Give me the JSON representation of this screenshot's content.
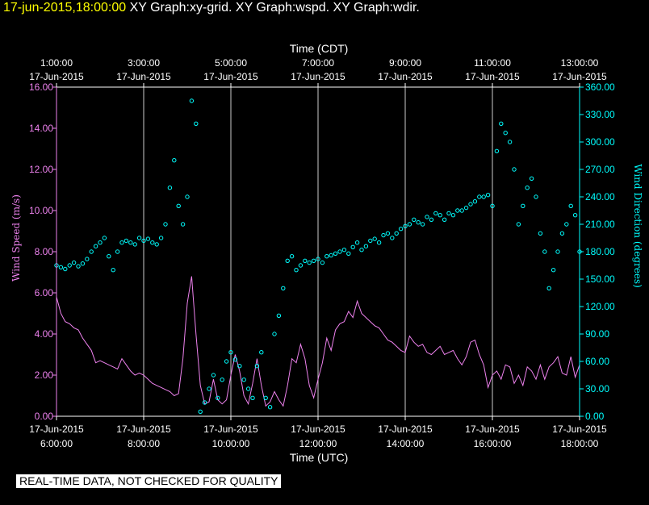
{
  "header": {
    "timestamp": "17-jun-2015,18:00:00",
    "graphs": "XY Graph:xy-grid.  XY Graph:wspd.  XY Graph:wdir."
  },
  "footer_banner": "REAL-TIME DATA, NOT CHECKED FOR QUALITY",
  "colors": {
    "background": "#000000",
    "axis": "#ffffff",
    "grid": "#cccccc",
    "wind_speed": "#ee82ee",
    "wind_direction": "#00ffff",
    "header_timestamp": "#ffff00"
  },
  "chart_data": {
    "type": "line",
    "grid": "vertical",
    "xlabel_bottom": "Time (UTC)",
    "xlabel_top": "Time (CDT)",
    "ylabel_left": "Wind Speed (m/s)",
    "ylabel_right": "Wind Direction (degrees)",
    "ylim_left": [
      0,
      16
    ],
    "ylim_right": [
      0,
      360
    ],
    "xlim_utc_hours": [
      6,
      18
    ],
    "yticks_left": [
      "0.00",
      "2.00",
      "4.00",
      "6.00",
      "8.00",
      "10.00",
      "12.00",
      "14.00",
      "16.00"
    ],
    "yticks_right": [
      "0.00",
      "30.00",
      "60.00",
      "90.00",
      "120.00",
      "150.00",
      "180.00",
      "210.00",
      "240.00",
      "270.00",
      "300.00",
      "330.00",
      "360.00"
    ],
    "xticks_bottom": [
      {
        "hour": 6,
        "date": "17-Jun-2015",
        "time": "6:00:00"
      },
      {
        "hour": 8,
        "date": "17-Jun-2015",
        "time": "8:00:00"
      },
      {
        "hour": 10,
        "date": "17-Jun-2015",
        "time": "10:00:00"
      },
      {
        "hour": 12,
        "date": "17-Jun-2015",
        "time": "12:00:00"
      },
      {
        "hour": 14,
        "date": "17-Jun-2015",
        "time": "14:00:00"
      },
      {
        "hour": 16,
        "date": "17-Jun-2015",
        "time": "16:00:00"
      },
      {
        "hour": 18,
        "date": "17-Jun-2015",
        "time": "18:00:00"
      }
    ],
    "xticks_top": [
      {
        "hour": 6,
        "time": "1:00:00",
        "date": "17-Jun-2015"
      },
      {
        "hour": 8,
        "time": "3:00:00",
        "date": "17-Jun-2015"
      },
      {
        "hour": 10,
        "time": "5:00:00",
        "date": "17-Jun-2015"
      },
      {
        "hour": 12,
        "time": "7:00:00",
        "date": "17-Jun-2015"
      },
      {
        "hour": 14,
        "time": "9:00:00",
        "date": "17-Jun-2015"
      },
      {
        "hour": 16,
        "time": "11:00:00",
        "date": "17-Jun-2015"
      },
      {
        "hour": 18,
        "time": "13:00:00",
        "date": "17-Jun-2015"
      }
    ],
    "series": [
      {
        "name": "Wind Speed",
        "axis": "left",
        "style": "line",
        "x": [
          6.0,
          6.1,
          6.2,
          6.3,
          6.4,
          6.5,
          6.6,
          6.7,
          6.8,
          6.9,
          7.0,
          7.1,
          7.2,
          7.3,
          7.4,
          7.5,
          7.6,
          7.7,
          7.8,
          7.9,
          8.0,
          8.1,
          8.2,
          8.3,
          8.4,
          8.5,
          8.6,
          8.7,
          8.8,
          8.9,
          9.0,
          9.1,
          9.2,
          9.3,
          9.4,
          9.5,
          9.6,
          9.7,
          9.8,
          9.9,
          10.0,
          10.1,
          10.2,
          10.3,
          10.4,
          10.5,
          10.6,
          10.7,
          10.8,
          10.9,
          11.0,
          11.1,
          11.2,
          11.3,
          11.4,
          11.5,
          11.6,
          11.7,
          11.8,
          11.9,
          12.0,
          12.1,
          12.2,
          12.3,
          12.4,
          12.5,
          12.6,
          12.7,
          12.8,
          12.9,
          13.0,
          13.1,
          13.2,
          13.3,
          13.4,
          13.5,
          13.6,
          13.7,
          13.8,
          13.9,
          14.0,
          14.1,
          14.2,
          14.3,
          14.4,
          14.5,
          14.6,
          14.7,
          14.8,
          14.9,
          15.0,
          15.1,
          15.2,
          15.3,
          15.4,
          15.5,
          15.6,
          15.7,
          15.8,
          15.9,
          16.0,
          16.1,
          16.2,
          16.3,
          16.4,
          16.5,
          16.6,
          16.7,
          16.8,
          16.9,
          17.0,
          17.1,
          17.2,
          17.3,
          17.4,
          17.5,
          17.6,
          17.7,
          17.8,
          17.9,
          18.0
        ],
        "y": [
          5.8,
          5.0,
          4.6,
          4.5,
          4.3,
          4.2,
          3.8,
          3.5,
          3.2,
          2.6,
          2.7,
          2.6,
          2.5,
          2.4,
          2.3,
          2.8,
          2.5,
          2.2,
          2.0,
          2.1,
          2.0,
          1.8,
          1.6,
          1.5,
          1.4,
          1.3,
          1.2,
          1.0,
          1.1,
          2.8,
          5.5,
          6.8,
          4.0,
          1.5,
          0.6,
          0.7,
          1.8,
          0.8,
          0.6,
          0.8,
          2.0,
          3.0,
          2.2,
          1.0,
          0.6,
          1.6,
          2.8,
          1.5,
          0.5,
          0.7,
          1.2,
          0.8,
          0.5,
          1.5,
          2.8,
          2.6,
          3.5,
          2.8,
          1.5,
          0.9,
          1.8,
          2.6,
          3.8,
          3.2,
          4.2,
          4.5,
          4.6,
          5.1,
          4.8,
          5.6,
          5.0,
          4.8,
          4.6,
          4.4,
          4.3,
          4.0,
          3.7,
          3.6,
          3.4,
          3.2,
          3.1,
          3.9,
          3.6,
          3.4,
          3.5,
          3.1,
          3.0,
          3.2,
          3.4,
          3.0,
          3.1,
          3.2,
          2.8,
          2.5,
          2.9,
          3.6,
          3.7,
          3.0,
          2.5,
          1.4,
          2.0,
          2.2,
          1.8,
          2.5,
          2.4,
          1.6,
          2.0,
          1.5,
          2.4,
          2.2,
          1.8,
          2.5,
          1.8,
          2.4,
          2.6,
          2.9,
          2.1,
          2.0,
          2.9,
          1.9,
          2.5
        ]
      },
      {
        "name": "Wind Direction",
        "axis": "right",
        "style": "circles",
        "x": [
          6.0,
          6.1,
          6.2,
          6.3,
          6.4,
          6.5,
          6.6,
          6.7,
          6.8,
          6.9,
          7.0,
          7.1,
          7.2,
          7.3,
          7.4,
          7.5,
          7.6,
          7.7,
          7.8,
          7.9,
          8.0,
          8.1,
          8.2,
          8.3,
          8.4,
          8.5,
          8.6,
          8.7,
          8.8,
          8.9,
          9.0,
          9.1,
          9.2,
          9.3,
          9.4,
          9.5,
          9.6,
          9.7,
          9.8,
          9.9,
          10.0,
          10.1,
          10.2,
          10.3,
          10.4,
          10.5,
          10.6,
          10.7,
          10.8,
          10.9,
          11.0,
          11.1,
          11.2,
          11.3,
          11.4,
          11.5,
          11.6,
          11.7,
          11.8,
          11.9,
          12.0,
          12.1,
          12.2,
          12.3,
          12.4,
          12.5,
          12.6,
          12.7,
          12.8,
          12.9,
          13.0,
          13.1,
          13.2,
          13.3,
          13.4,
          13.5,
          13.6,
          13.7,
          13.8,
          13.9,
          14.0,
          14.1,
          14.2,
          14.3,
          14.4,
          14.5,
          14.6,
          14.7,
          14.8,
          14.9,
          15.0,
          15.1,
          15.2,
          15.3,
          15.4,
          15.5,
          15.6,
          15.7,
          15.8,
          15.9,
          16.0,
          16.1,
          16.2,
          16.3,
          16.4,
          16.5,
          16.6,
          16.7,
          16.8,
          16.9,
          17.0,
          17.1,
          17.2,
          17.3,
          17.4,
          17.5,
          17.6,
          17.7,
          17.8,
          17.9,
          18.0
        ],
        "y": [
          165,
          163,
          161,
          165,
          168,
          164,
          167,
          172,
          180,
          186,
          190,
          195,
          175,
          160,
          180,
          190,
          192,
          190,
          188,
          195,
          192,
          194,
          190,
          188,
          195,
          210,
          250,
          280,
          230,
          210,
          240,
          345,
          320,
          5,
          15,
          30,
          45,
          20,
          40,
          60,
          70,
          62,
          55,
          40,
          30,
          20,
          55,
          70,
          20,
          10,
          90,
          110,
          140,
          170,
          175,
          160,
          165,
          170,
          168,
          170,
          172,
          168,
          175,
          176,
          178,
          180,
          182,
          178,
          185,
          190,
          182,
          186,
          192,
          194,
          190,
          198,
          200,
          195,
          200,
          205,
          208,
          210,
          215,
          212,
          210,
          218,
          215,
          222,
          220,
          215,
          222,
          220,
          225,
          225,
          228,
          232,
          235,
          240,
          240,
          242,
          230,
          290,
          320,
          310,
          300,
          270,
          210,
          230,
          250,
          260,
          240,
          200,
          180,
          140,
          160,
          180,
          200,
          210,
          230,
          220,
          180
        ]
      }
    ]
  }
}
